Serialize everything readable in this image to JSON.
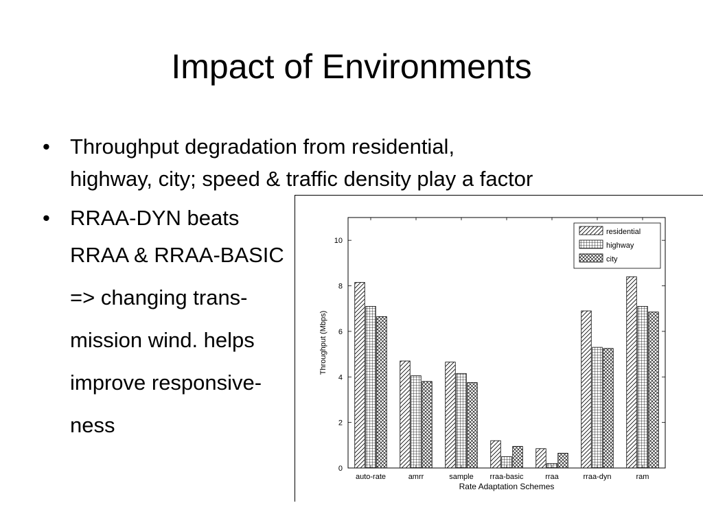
{
  "slide": {
    "title": "Impact of Environments",
    "bullets": [
      {
        "lines": [
          "Throughput degradation from residential,",
          "highway, city; speed & traffic density play a factor"
        ]
      },
      {
        "lines": [
          "RRAA-DYN beats",
          "RRAA & RRAA-BASIC",
          "=> changing trans-",
          "mission wind. helps",
          "improve responsive-",
          "ness"
        ]
      }
    ],
    "bullet_glyph": "•"
  },
  "chart_data": {
    "type": "bar",
    "categories": [
      "auto-rate",
      "amrr",
      "sample",
      "rraa-basic",
      "rraa",
      "rraa-dyn",
      "ram"
    ],
    "series": [
      {
        "name": "residential",
        "pattern": "diagonal-hatch",
        "values": [
          8.15,
          4.7,
          4.65,
          1.2,
          0.85,
          6.9,
          8.4
        ]
      },
      {
        "name": "highway",
        "pattern": "grid",
        "values": [
          7.1,
          4.05,
          4.15,
          0.5,
          0.2,
          5.3,
          7.1
        ]
      },
      {
        "name": "city",
        "pattern": "crosshatch",
        "values": [
          6.65,
          3.8,
          3.75,
          0.95,
          0.65,
          5.25,
          6.85
        ]
      }
    ],
    "xlabel": "Rate Adaptation Schemes",
    "ylabel": "Throughput (Mbps)",
    "ylim": [
      0,
      11
    ],
    "yticks": [
      0,
      2,
      4,
      6,
      8,
      10
    ],
    "legend_position": "top-right",
    "grid": false,
    "colors": {
      "bar_fill": "#ffffff",
      "ink": "#000000"
    }
  }
}
